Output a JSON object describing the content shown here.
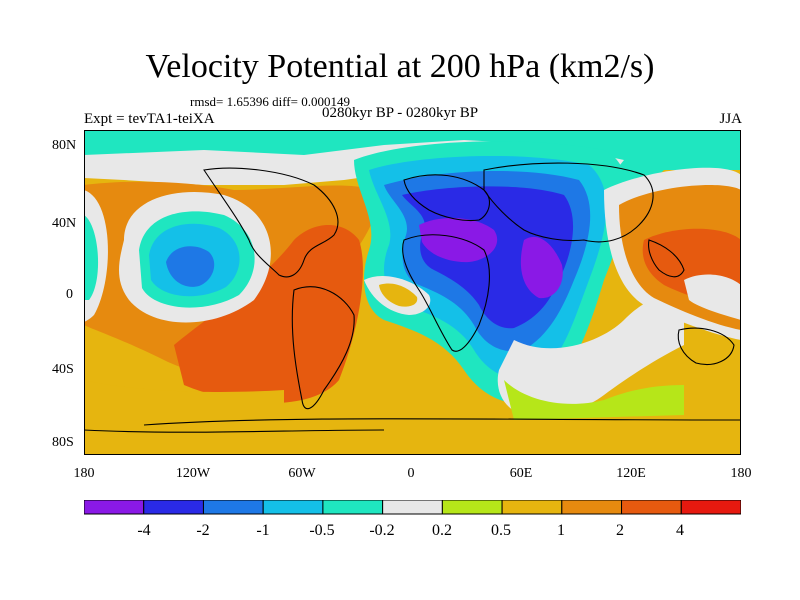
{
  "map": {
    "title": "Velocity Potential at 200 hPa (km2/s)",
    "stats": "rmsd= 1.65396 diff= 0.000149",
    "left_label": "Expt = tevTA1-teiXA",
    "center_label": "0280kyr BP - 0280kyr BP",
    "right_label": "JJA",
    "lat_ticks": [
      "80N",
      "40N",
      "0",
      "40S",
      "80S"
    ],
    "lon_ticks": [
      "180",
      "120W",
      "60W",
      "0",
      "60E",
      "120E",
      "180"
    ]
  },
  "colorbar": {
    "colors": [
      "#8a19e6",
      "#2a2ae6",
      "#1e78e6",
      "#14c0e8",
      "#1fe6c0",
      "#e8e8e8",
      "#b6e619",
      "#e6b50f",
      "#e68a0f",
      "#e65a0f",
      "#e6190f"
    ],
    "labels": [
      "-4",
      "-2",
      "-1",
      "-0.5",
      "-0.2",
      "0.2",
      "0.5",
      "1",
      "2",
      "4"
    ]
  }
}
